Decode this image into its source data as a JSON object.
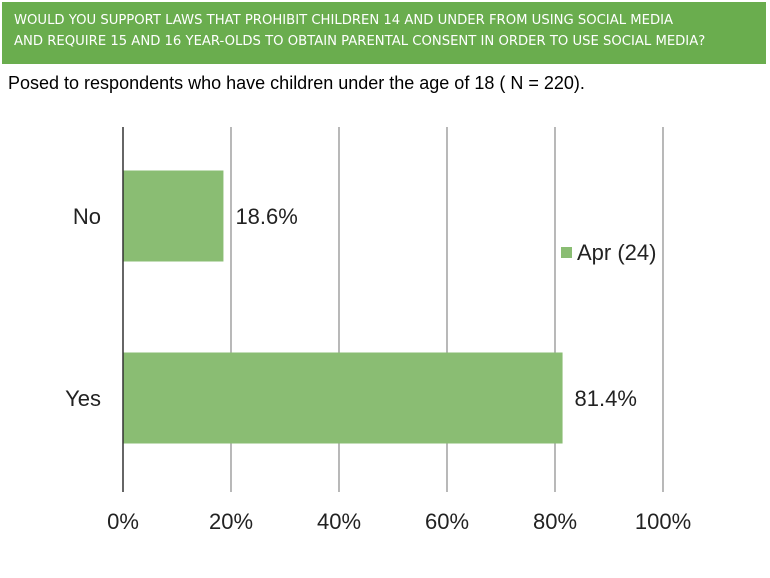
{
  "header": {
    "title_line1": "WOULD YOU SUPPORT LAWS THAT PROHIBIT CHILDREN 14 AND UNDER FROM USING SOCIAL MEDIA",
    "title_line2": "AND REQUIRE 15 AND 16 YEAR-OLDS TO OBTAIN PARENTAL CONSENT IN ORDER TO USE SOCIAL MEDIA?",
    "subtitle": "Posed to respondents who have children under the age of 18 ( N = 220)."
  },
  "chart_data": {
    "type": "bar",
    "orientation": "horizontal",
    "categories": [
      "No",
      "Yes"
    ],
    "series": [
      {
        "name": "Apr (24)",
        "values": [
          18.6,
          81.4
        ],
        "value_labels": [
          "18.6%",
          "81.4%"
        ],
        "color": "#8abd73"
      }
    ],
    "xlim": [
      0,
      100
    ],
    "xticks": [
      0,
      20,
      40,
      60,
      80,
      100
    ],
    "xtick_labels": [
      "0%",
      "20%",
      "40%",
      "60%",
      "80%",
      "100%"
    ],
    "grid": true,
    "legend_position": "right"
  },
  "colors": {
    "banner": "#6aad4e",
    "bar": "#8abd73",
    "grid": "#8a8a8a"
  }
}
